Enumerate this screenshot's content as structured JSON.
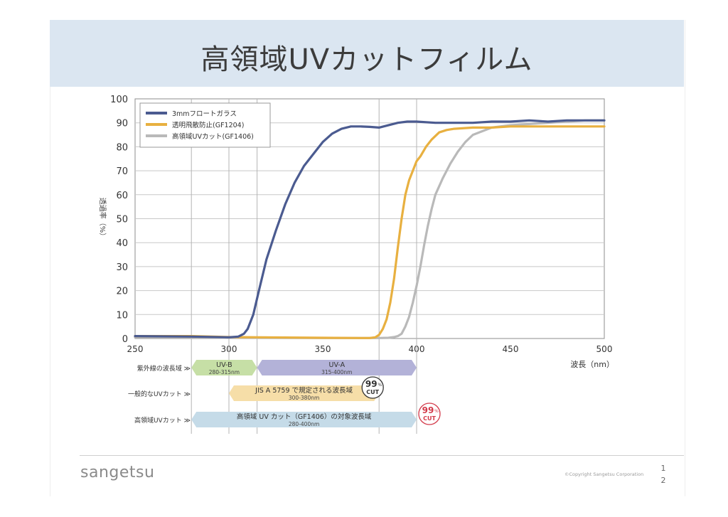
{
  "title": "高領域UVカットフィルム",
  "footer": {
    "logo": "sangetsu",
    "copyright": "©Copyright Sangetsu Corporation",
    "page_line1": "1",
    "page_line2": "2"
  },
  "chart_data": {
    "type": "line",
    "xlabel": "波長（nm）",
    "ylabel": "透過率（%）",
    "xlim": [
      250,
      500
    ],
    "ylim": [
      0,
      100
    ],
    "xticks": [
      250,
      300,
      350,
      400,
      450,
      500
    ],
    "yticks": [
      0,
      10,
      20,
      30,
      40,
      50,
      60,
      70,
      80,
      90,
      100
    ],
    "grid": true,
    "legend_position": "top-left",
    "reference_lines_x": [
      280,
      300,
      315,
      380,
      400
    ],
    "series": [
      {
        "name": "3mmフロートガラス",
        "color": "#4b5b90",
        "x": [
          250,
          280,
          300,
          305,
          308,
          310,
          313,
          316,
          320,
          325,
          330,
          335,
          340,
          345,
          350,
          355,
          360,
          365,
          370,
          375,
          380,
          385,
          390,
          395,
          400,
          410,
          420,
          430,
          440,
          450,
          460,
          470,
          480,
          490,
          500
        ],
        "y": [
          1,
          0.8,
          0.5,
          0.8,
          2,
          4,
          10,
          20,
          33,
          45,
          56,
          65,
          72,
          77,
          82,
          85.5,
          87.5,
          88.5,
          88.5,
          88.3,
          88,
          89,
          90,
          90.5,
          90.5,
          90,
          90,
          90,
          90.5,
          90.5,
          91,
          90.5,
          91,
          91,
          91
        ]
      },
      {
        "name": "透明飛散防止(GF1204)",
        "color": "#e8b040",
        "x": [
          250,
          280,
          300,
          350,
          370,
          375,
          378,
          380,
          382,
          384,
          386,
          388,
          390,
          392,
          394,
          396,
          398,
          400,
          402,
          405,
          408,
          412,
          416,
          420,
          430,
          440,
          450,
          460,
          470,
          480,
          490,
          500
        ],
        "y": [
          1,
          1,
          0.6,
          0.3,
          0.2,
          0.2,
          0.5,
          1.5,
          4,
          8,
          15,
          25,
          38,
          50,
          60,
          66,
          70,
          74,
          76,
          80,
          83,
          86,
          87,
          87.5,
          88,
          88,
          88.5,
          88.5,
          88.5,
          88.5,
          88.5,
          88.5
        ]
      },
      {
        "name": "高領域UVカット(GF1406)",
        "color": "#b9b9b9",
        "x": [
          250,
          280,
          300,
          350,
          380,
          385,
          388,
          390,
          392,
          394,
          396,
          398,
          400,
          402,
          404,
          406,
          408,
          410,
          414,
          418,
          422,
          426,
          430,
          440,
          450,
          460,
          470,
          480,
          490,
          500
        ],
        "y": [
          0.5,
          0.5,
          0.3,
          0.2,
          0.2,
          0.3,
          0.6,
          1,
          2,
          5,
          9,
          15,
          22,
          30,
          39,
          47,
          54,
          60,
          67,
          73,
          78,
          82,
          85,
          88,
          89,
          89.5,
          90,
          90.5,
          91,
          91
        ]
      }
    ],
    "bands": [
      {
        "row": 0,
        "row_label": "紫外線の波長域 ≫",
        "items": [
          {
            "title": "UV-B",
            "subtitle": "280-315nm",
            "from": 280,
            "to": 315,
            "color": "#c6dfa6"
          },
          {
            "title": "UV-A",
            "subtitle": "315-400nm",
            "from": 315,
            "to": 400,
            "color": "#b3b2d8"
          }
        ]
      },
      {
        "row": 1,
        "row_label": "一般的なUVカット ≫",
        "items": [
          {
            "title": "JIS A 5759 で規定される波長域",
            "subtitle": "300-380nm",
            "from": 300,
            "to": 380,
            "color": "#f6dea8"
          }
        ],
        "badge": {
          "value": "99",
          "unit": "%",
          "label": "CUT",
          "at": 380,
          "color": "#333333"
        }
      },
      {
        "row": 2,
        "row_label": "高領域UVカット ≫",
        "items": [
          {
            "title": "高領域 UV カット（GF1406）の対象波長域",
            "subtitle": "280-400nm",
            "from": 280,
            "to": 400,
            "color": "#c5dbe8"
          }
        ],
        "badge": {
          "value": "99",
          "unit": "%",
          "label": "CUT",
          "at": 400,
          "color": "#d33a4a"
        }
      }
    ]
  }
}
